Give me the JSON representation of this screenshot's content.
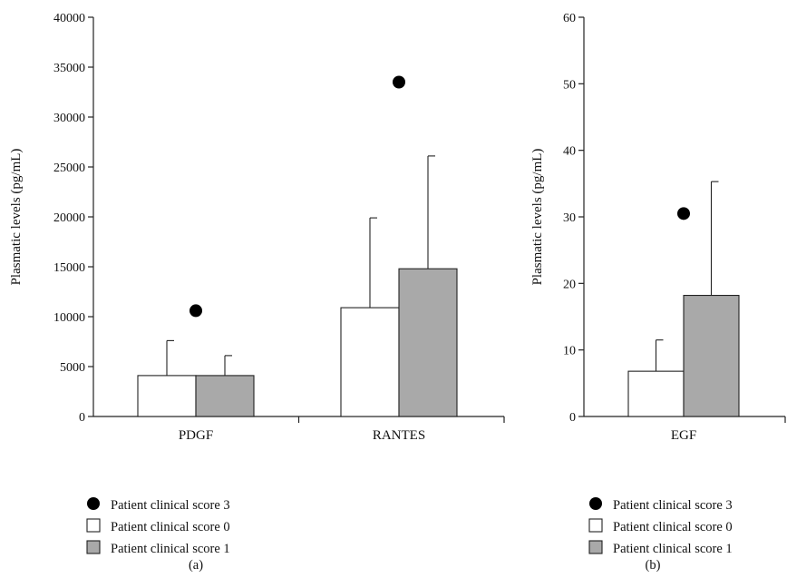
{
  "colors": {
    "score0": "#ffffff",
    "score1": "#a9a9a9",
    "score3": "#000000",
    "axis": "#222222"
  },
  "chart_data": [
    {
      "panel": "(a)",
      "type": "bar",
      "ylabel": "Plasmatic levels (pg/mL)",
      "ylim": [
        0,
        40000
      ],
      "yticks": [
        0,
        5000,
        10000,
        15000,
        20000,
        25000,
        30000,
        35000,
        40000
      ],
      "categories": [
        "PDGF",
        "RANTES"
      ],
      "series": [
        {
          "name": "Patient clinical score 0",
          "values": [
            4100,
            10900
          ],
          "error_upper": [
            7600,
            19900
          ]
        },
        {
          "name": "Patient clinical score 1",
          "values": [
            4100,
            14800
          ],
          "error_upper": [
            6100,
            26100
          ]
        }
      ],
      "points": {
        "name": "Patient clinical score 3",
        "values": [
          10600,
          33500
        ]
      },
      "legend": [
        "Patient clinical score 3",
        "Patient clinical score 0",
        "Patient clinical score 1"
      ]
    },
    {
      "panel": "(b)",
      "type": "bar",
      "ylabel": "Plasmatic levels (pg/mL)",
      "ylim": [
        0,
        60
      ],
      "yticks": [
        0,
        10,
        20,
        30,
        40,
        50,
        60
      ],
      "categories": [
        "EGF"
      ],
      "series": [
        {
          "name": "Patient clinical score 0",
          "values": [
            6.8
          ],
          "error_upper": [
            11.5
          ]
        },
        {
          "name": "Patient clinical score 1",
          "values": [
            18.2
          ],
          "error_upper": [
            35.3
          ]
        }
      ],
      "points": {
        "name": "Patient clinical score 3",
        "values": [
          30.5
        ]
      },
      "legend": [
        "Patient clinical score 3",
        "Patient clinical score 0",
        "Patient clinical score 1"
      ]
    }
  ]
}
